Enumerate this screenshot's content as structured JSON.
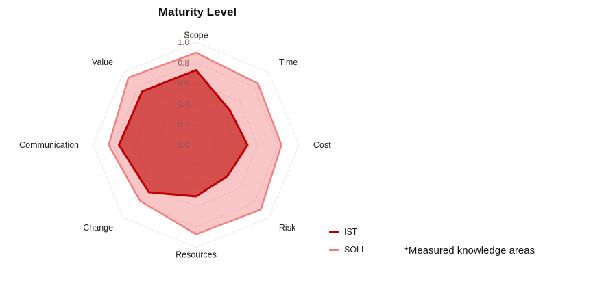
{
  "chart_data": {
    "type": "radar",
    "title": "Maturity Level",
    "axes": [
      "Scope",
      "Time",
      "Cost",
      "Risk",
      "Resources",
      "Change",
      "Communication",
      "Value"
    ],
    "ticks": [
      "0.0",
      "0.2",
      "0.4",
      "0.6",
      "0.8",
      "1.0"
    ],
    "range": [
      0,
      1
    ],
    "legend_position": "bottom-right",
    "series": [
      {
        "name": "IST",
        "color": "#c00000",
        "values": [
          0.73,
          0.47,
          0.5,
          0.43,
          0.5,
          0.65,
          0.75,
          0.74
        ]
      },
      {
        "name": "SOLL",
        "color": "#f08080",
        "values": [
          0.9,
          0.85,
          0.83,
          0.89,
          0.87,
          0.77,
          0.85,
          0.93
        ]
      }
    ]
  },
  "footnote": "*Measured knowledge areas"
}
